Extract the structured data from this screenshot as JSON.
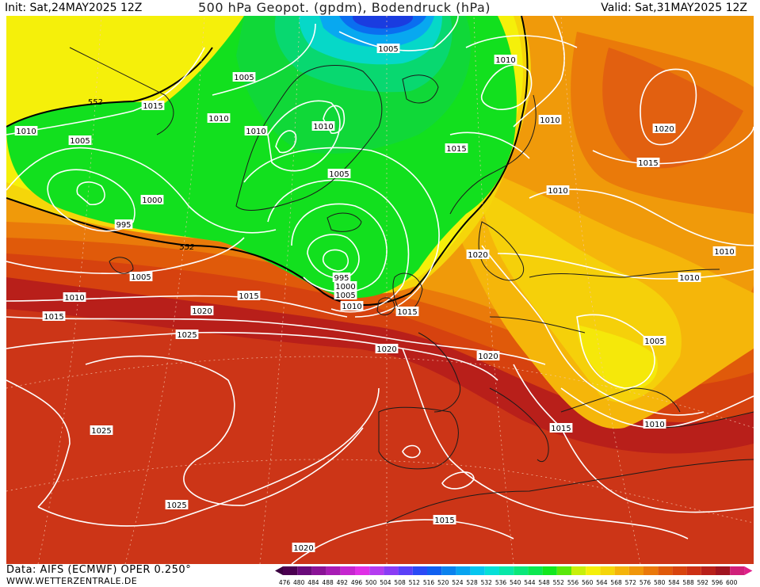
{
  "header": {
    "init": "Init: Sat,24MAY2025 12Z",
    "title": "500 hPa Geopot. (gpdm), Bodendruck (hPa)",
    "valid": "Valid: Sat,31MAY2025 12Z"
  },
  "footer": {
    "source": "Data: AIFS (ECMWF) OPER 0.250°",
    "site": "WWW.WETTERZENTRALE.DE"
  },
  "legend": {
    "ticks": [
      "476",
      "480",
      "484",
      "488",
      "492",
      "496",
      "500",
      "504",
      "508",
      "512",
      "516",
      "520",
      "524",
      "528",
      "532",
      "536",
      "540",
      "544",
      "548",
      "552",
      "556",
      "560",
      "564",
      "568",
      "572",
      "576",
      "580",
      "584",
      "588",
      "592",
      "596",
      "600"
    ],
    "colors": [
      "#4b0050",
      "#6a0a7a",
      "#8a1296",
      "#a81cb4",
      "#c626cf",
      "#e030e6",
      "#b43cf0",
      "#8a3cf5",
      "#5a40f8",
      "#2a4af6",
      "#1060f0",
      "#0a82ee",
      "#08a4f0",
      "#06c6f0",
      "#06e0d8",
      "#08e8a8",
      "#0ae87a",
      "#0ce850",
      "#12e81e",
      "#5ae80a",
      "#c8f00a",
      "#f5f00a",
      "#f5d60a",
      "#f5b40a",
      "#f0960a",
      "#ea780a",
      "#e05a0a",
      "#d8440e",
      "#cc3014",
      "#b8201a",
      "#a01420",
      "#d0207a"
    ]
  },
  "map": {
    "contour_labels": [
      {
        "text": "1010",
        "tag": "w"
      },
      {
        "text": "1005",
        "tag": "w"
      },
      {
        "text": "1015",
        "tag": "w"
      },
      {
        "text": "1010",
        "tag": "w"
      },
      {
        "text": "1010",
        "tag": "w"
      },
      {
        "text": "1005",
        "tag": "w"
      },
      {
        "text": "1005",
        "tag": "w"
      },
      {
        "text": "1010",
        "tag": "w"
      },
      {
        "text": "1005",
        "tag": "w"
      },
      {
        "text": "1010",
        "tag": "w"
      },
      {
        "text": "1015",
        "tag": "w"
      },
      {
        "text": "1000",
        "tag": "w"
      },
      {
        "text": "995",
        "tag": "w"
      },
      {
        "text": "1005",
        "tag": "w"
      },
      {
        "text": "1010",
        "tag": "w"
      },
      {
        "text": "1015",
        "tag": "w"
      },
      {
        "text": "1015",
        "tag": "w"
      },
      {
        "text": "1020",
        "tag": "w"
      },
      {
        "text": "1025",
        "tag": "w"
      },
      {
        "text": "995",
        "tag": "w"
      },
      {
        "text": "1000",
        "tag": "w"
      },
      {
        "text": "1005",
        "tag": "w"
      },
      {
        "text": "1010",
        "tag": "w"
      },
      {
        "text": "1015",
        "tag": "w"
      },
      {
        "text": "1020",
        "tag": "w"
      },
      {
        "text": "1020",
        "tag": "w"
      },
      {
        "text": "1020",
        "tag": "w"
      },
      {
        "text": "1010",
        "tag": "w"
      },
      {
        "text": "1020",
        "tag": "w"
      },
      {
        "text": "1015",
        "tag": "w"
      },
      {
        "text": "1010",
        "tag": "w"
      },
      {
        "text": "1010",
        "tag": "w"
      },
      {
        "text": "1010",
        "tag": "w"
      },
      {
        "text": "1005",
        "tag": "w"
      },
      {
        "text": "1015",
        "tag": "w"
      },
      {
        "text": "1010",
        "tag": "w"
      },
      {
        "text": "1025",
        "tag": "w"
      },
      {
        "text": "1025",
        "tag": "w"
      },
      {
        "text": "1015",
        "tag": "w"
      },
      {
        "text": "1020",
        "tag": "w"
      }
    ],
    "geopot_labels": [
      "552",
      "552"
    ]
  }
}
